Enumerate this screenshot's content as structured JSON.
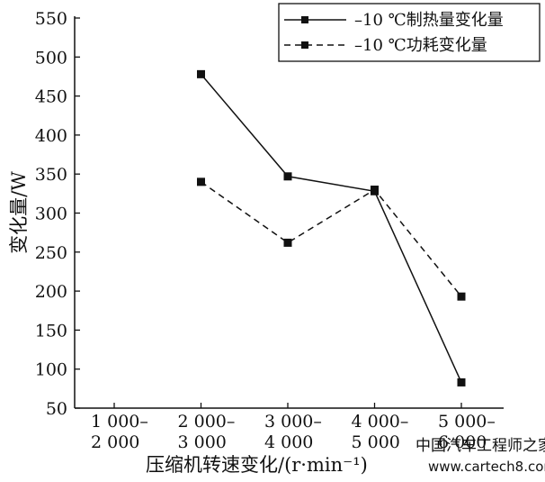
{
  "chart_data": {
    "type": "line",
    "ylabel": "变化量/W",
    "xlabel": "压缩机转速变化/(r·min⁻¹)",
    "categories": [
      [
        "1 000–",
        "2 000"
      ],
      [
        "2 000–",
        "3 000"
      ],
      [
        "3 000–",
        "4 000"
      ],
      [
        "4 000–",
        "5 000"
      ],
      [
        "5 000–",
        "6 000"
      ]
    ],
    "ylim": [
      50,
      550
    ],
    "yticks": [
      50,
      100,
      150,
      200,
      250,
      300,
      350,
      400,
      450,
      500,
      550
    ],
    "grid": false,
    "legend_position": "top-right",
    "series": [
      {
        "name": "–10 ℃制热量变化量",
        "style": "solid",
        "values": [
          null,
          478,
          347,
          328,
          83
        ]
      },
      {
        "name": "–10 ℃功耗变化量",
        "style": "dashed",
        "values": [
          null,
          340,
          262,
          330,
          193
        ]
      }
    ]
  },
  "watermark": {
    "line1": "中国汽车工程师之家",
    "line2": "www.cartech8.com"
  }
}
